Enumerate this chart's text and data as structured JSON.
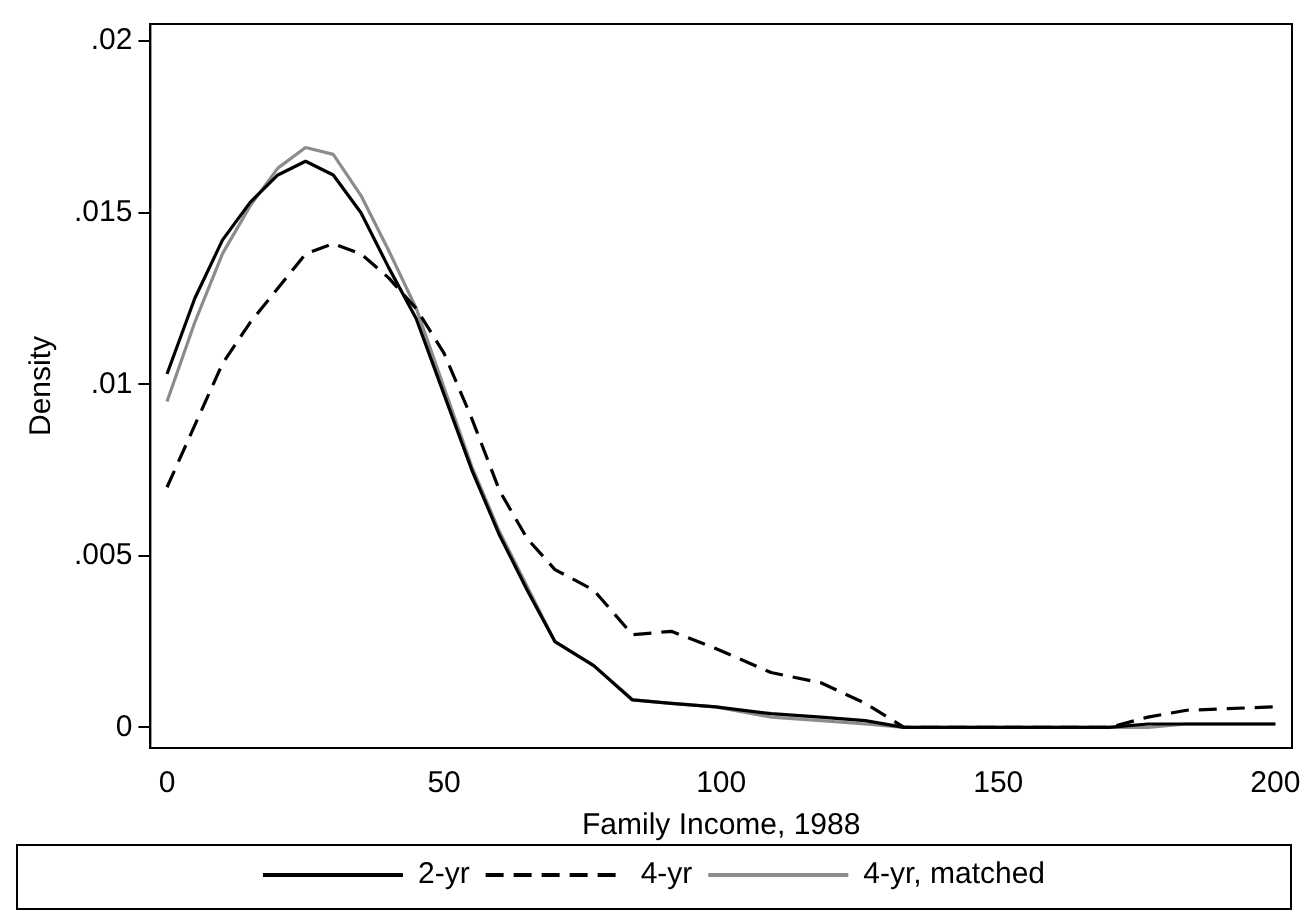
{
  "chart_data": {
    "type": "line",
    "xlabel": "Family Income, 1988",
    "ylabel": "Density",
    "x": [
      0,
      5,
      10,
      15,
      20,
      25,
      30,
      35,
      40,
      45,
      50,
      55,
      60,
      65,
      70,
      77,
      84,
      91,
      99,
      109,
      118,
      126,
      133,
      150,
      170,
      177,
      184,
      200
    ],
    "series": [
      {
        "name": "2-yr",
        "color": "#000000",
        "line_style": "solid",
        "values": [
          0.0103,
          0.0125,
          0.0142,
          0.0153,
          0.0161,
          0.0165,
          0.0161,
          0.015,
          0.0134,
          0.0119,
          0.0097,
          0.0075,
          0.0056,
          0.004,
          0.0025,
          0.0018,
          0.0008,
          0.0007,
          0.0006,
          0.0004,
          0.0003,
          0.0002,
          0,
          0,
          0,
          0.0001,
          0.0001,
          0.0001
        ]
      },
      {
        "name": "4-yr",
        "color": "#000000",
        "line_style": "dashed",
        "values": [
          0.007,
          0.0088,
          0.0106,
          0.0118,
          0.0128,
          0.0138,
          0.0141,
          0.0138,
          0.0131,
          0.0122,
          0.0109,
          0.009,
          0.0069,
          0.0055,
          0.0046,
          0.004,
          0.0027,
          0.0028,
          0.0023,
          0.0016,
          0.0013,
          0.0007,
          0,
          0,
          0,
          0.0003,
          0.0005,
          0.0006
        ]
      },
      {
        "name": "4-yr, matched",
        "color": "#8c8c8c",
        "line_style": "solid",
        "values": [
          0.0095,
          0.0118,
          0.0138,
          0.0152,
          0.0163,
          0.0169,
          0.0167,
          0.0155,
          0.0139,
          0.0122,
          0.0099,
          0.0076,
          0.0057,
          0.0041,
          0.0025,
          0.0018,
          0.0008,
          0.0007,
          0.0006,
          0.0003,
          0.0002,
          0.0001,
          0,
          0,
          0,
          0,
          0.0001,
          0.0001
        ]
      }
    ],
    "xlim": [
      -3,
      203
    ],
    "xticks": [
      0,
      50,
      100,
      150,
      200
    ],
    "ylim": [
      -0.0006,
      0.0205
    ],
    "yticks": [
      {
        "value": 0,
        "label": "0"
      },
      {
        "value": 0.005,
        "label": ".005"
      },
      {
        "value": 0.01,
        "label": ".01"
      },
      {
        "value": 0.015,
        "label": ".015"
      },
      {
        "value": 0.02,
        "label": ".02"
      }
    ],
    "grid": false,
    "legend": "bottom",
    "marker": "none"
  }
}
